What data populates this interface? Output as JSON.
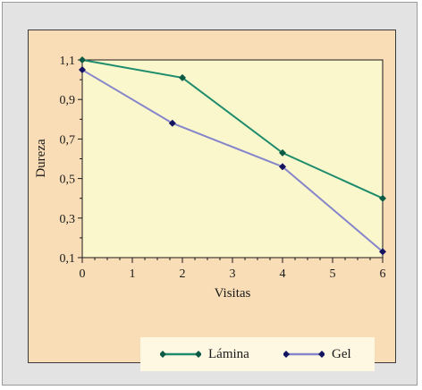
{
  "chart_data": {
    "type": "line",
    "title": "",
    "xlabel": "Visitas",
    "ylabel": "Dureza",
    "xlim": [
      0,
      6
    ],
    "ylim": [
      0.1,
      1.1
    ],
    "x_ticks": [
      "0",
      "1",
      "2",
      "3",
      "4",
      "5",
      "6"
    ],
    "y_ticks": [
      "0,1",
      "0,3",
      "0,5",
      "0,7",
      "0,9",
      "1,1"
    ],
    "grid": false,
    "legend_position": "bottom",
    "series": [
      {
        "name": "Lámina",
        "color": "#1e8c6c",
        "marker_color": "#0d5a44",
        "x": [
          0,
          2,
          4,
          6
        ],
        "y": [
          1.1,
          1.01,
          0.63,
          0.4
        ]
      },
      {
        "name": "Gel",
        "color": "#8585cc",
        "marker_color": "#141460",
        "x": [
          0,
          1.8,
          4,
          6
        ],
        "y": [
          1.05,
          0.78,
          0.56,
          0.13
        ]
      }
    ],
    "colors": {
      "plot_background": "#fbf7cc",
      "panel_background": "#f9ddb6",
      "outer_background": "#e3e3e3",
      "legend_background": "#fef7e1"
    }
  }
}
